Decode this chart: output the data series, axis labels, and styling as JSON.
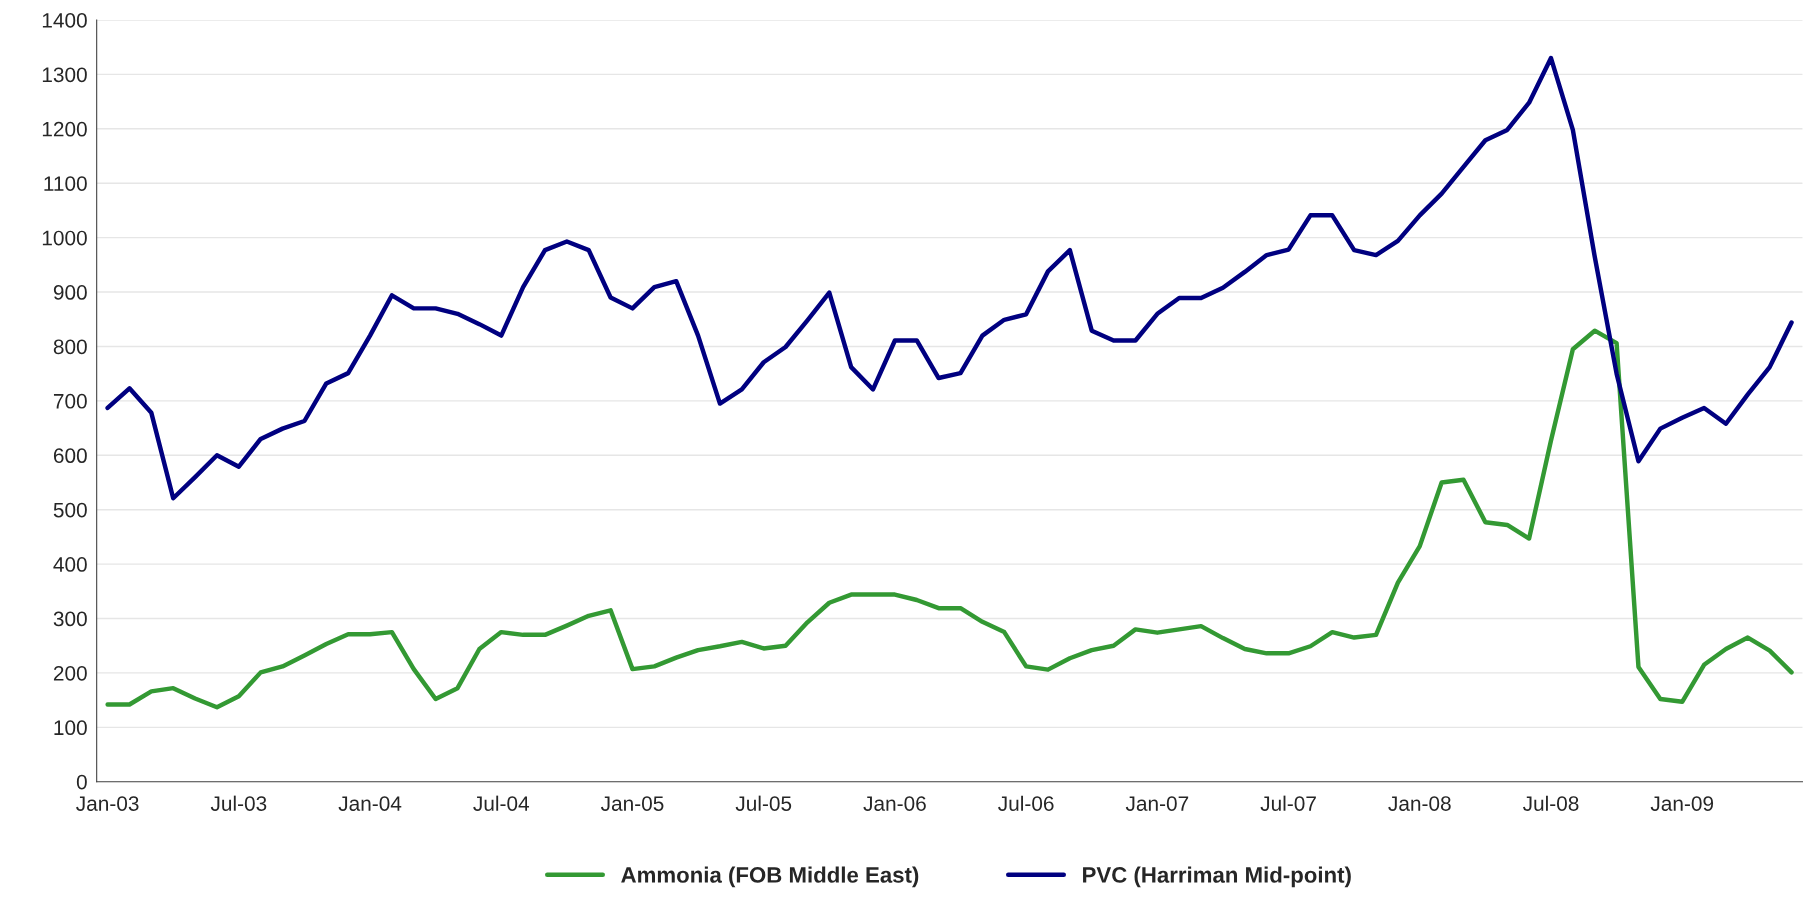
{
  "chart_data": {
    "type": "line",
    "categories": [
      "Jan-03",
      null,
      null,
      null,
      null,
      null,
      "Jul-03",
      null,
      null,
      null,
      null,
      null,
      "Jan-04",
      null,
      null,
      null,
      null,
      null,
      "Jul-04",
      null,
      null,
      null,
      null,
      null,
      "Jan-05",
      null,
      null,
      null,
      null,
      null,
      "Jul-05",
      null,
      null,
      null,
      null,
      null,
      "Jan-06",
      null,
      null,
      null,
      null,
      null,
      "Jul-06",
      null,
      null,
      null,
      null,
      null,
      "Jan-07",
      null,
      null,
      null,
      null,
      null,
      "Jul-07",
      null,
      null,
      null,
      null,
      null,
      "Jan-08",
      null,
      null,
      null,
      null,
      null,
      "Jul-08",
      null,
      null,
      null,
      null,
      null,
      "Jan-09",
      null,
      null,
      null,
      null,
      null
    ],
    "series": [
      {
        "name": "Ammonia (FOB Middle East)",
        "color": "#339933",
        "values": [
          142,
          142,
          166,
          172,
          153,
          137,
          157,
          201,
          212,
          232,
          253,
          271,
          271,
          275,
          207,
          152,
          172,
          244,
          275,
          270,
          270,
          287,
          305,
          315,
          207,
          212,
          228,
          242,
          249,
          257,
          245,
          250,
          293,
          329,
          344,
          344,
          344,
          334,
          319,
          319,
          294,
          275,
          212,
          206,
          227,
          242,
          250,
          280,
          274,
          280,
          286,
          264,
          244,
          236,
          236,
          249,
          275,
          265,
          270,
          366,
          433,
          550,
          555,
          477,
          472,
          447,
          627,
          795,
          829,
          806,
          211,
          152,
          147,
          215,
          244,
          265,
          241,
          201
        ]
      },
      {
        "name": "PVC (Harriman Mid-point)",
        "color": "#000080",
        "values": [
          687,
          723,
          678,
          521,
          560,
          600,
          579,
          630,
          649,
          663,
          732,
          751,
          820,
          894,
          870,
          870,
          860,
          841,
          820,
          909,
          977,
          993,
          977,
          890,
          870,
          909,
          920,
          820,
          695,
          721,
          771,
          799,
          848,
          899,
          762,
          721,
          811,
          811,
          742,
          751,
          820,
          849,
          859,
          938,
          977,
          829,
          811,
          811,
          860,
          889,
          889,
          908,
          937,
          968,
          978,
          1041,
          1041,
          977,
          968,
          994,
          1041,
          1081,
          1130,
          1179,
          1198,
          1248,
          1330,
          1198,
          965,
          750,
          589,
          649,
          669,
          687,
          658,
          712,
          762,
          844
        ]
      }
    ],
    "ylim": [
      0,
      1400
    ],
    "yticks": [
      0,
      100,
      200,
      300,
      400,
      500,
      600,
      700,
      800,
      900,
      1000,
      1100,
      1200,
      1300,
      1400
    ],
    "grid": "y",
    "legend": "bottom",
    "line_style": "solid",
    "marker": "none"
  }
}
